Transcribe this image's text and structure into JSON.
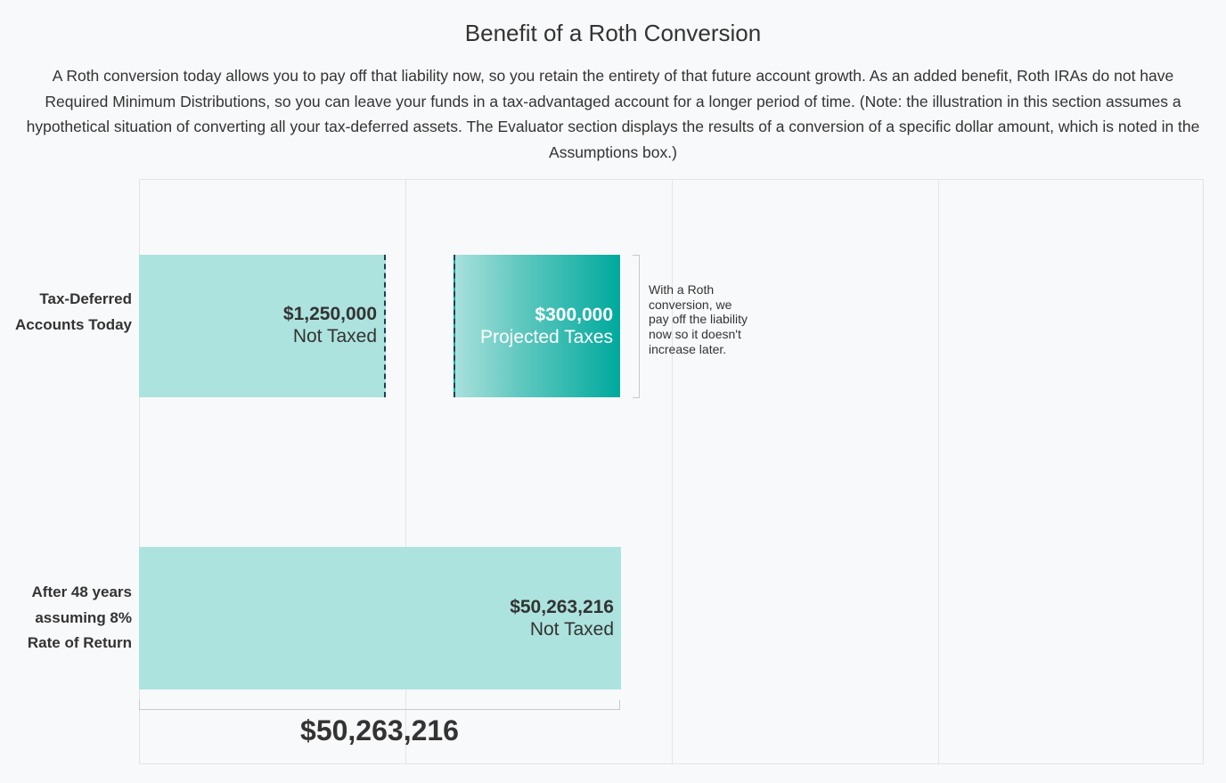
{
  "title": "Benefit of a Roth Conversion",
  "description": "A Roth conversion today allows you to pay off that liability now, so you retain the entirety of that future account growth. As an added benefit, Roth IRAs do not have Required Minimum Distributions, so you can leave your funds in a tax-advantaged account for a longer period of time. (Note: the illustration in this section assumes a hypothetical situation of converting all your tax-deferred assets. The Evaluator section displays the results of a conversion of a specific dollar amount, which is noted in the Assumptions box.)",
  "chart_data": {
    "type": "bar",
    "orientation": "horizontal",
    "categories": [
      "Tax-Deferred Accounts Today",
      "After 48 years assuming 8% Rate of Return"
    ],
    "rows": [
      {
        "label": "Tax-Deferred Accounts Today",
        "segments": [
          {
            "value": 1250000,
            "value_label": "$1,250,000",
            "sublabel": "Not Taxed",
            "color": "#ade3de"
          },
          {
            "value": 300000,
            "value_label": "$300,000",
            "sublabel": "Projected Taxes",
            "color": "#00a99d"
          }
        ],
        "annotation": "With a Roth conversion, we pay off the liability now so it doesn't increase later."
      },
      {
        "label": "After 48 years assuming 8% Rate of Return",
        "segments": [
          {
            "value": 50263216,
            "value_label": "$50,263,216",
            "sublabel": "Not Taxed",
            "color": "#ade3de"
          }
        ],
        "total_label": "$50,263,216"
      }
    ],
    "grid": true
  }
}
